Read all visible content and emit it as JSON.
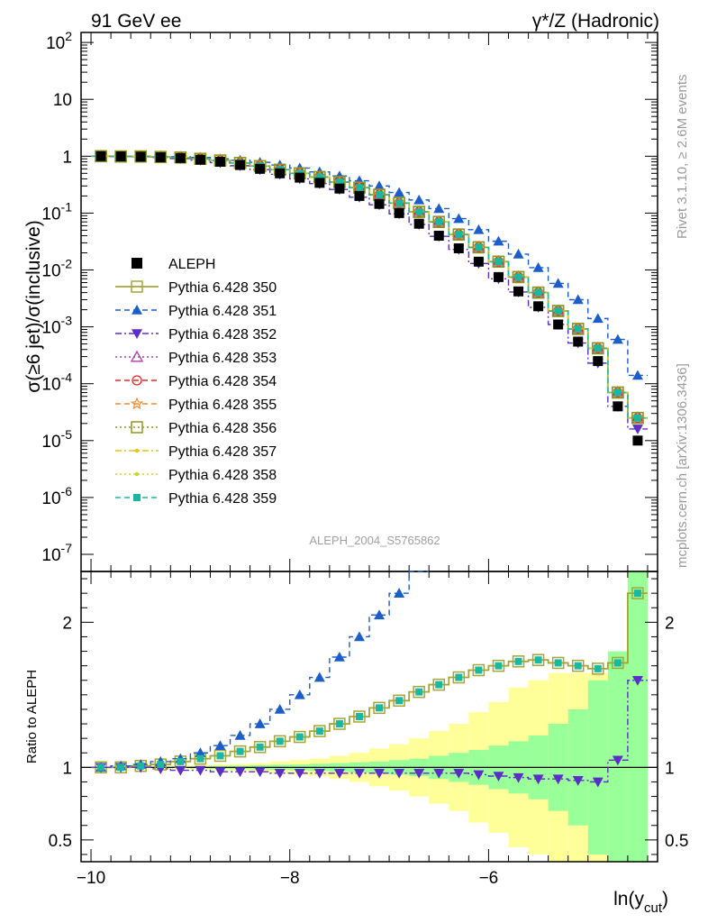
{
  "header": {
    "left_title": "91 GeV ee",
    "right_title": "γ*/Z (Hadronic)",
    "side_text_top": "Rivet 3.1.10, ≥ 2.6M events",
    "side_text_bottom": "mcplots.cern.ch [arXiv:1306.3436]",
    "analysis_id": "ALEPH_2004_S5765862"
  },
  "chart_data": [
    {
      "type": "scatter",
      "panel": "main",
      "ylabel": "σ(≥6 jet)/σ(inclusive)",
      "xlabel": "ln(y_cut)",
      "xlim": [
        -10.1,
        -4.3
      ],
      "ylim": [
        5e-08,
        150
      ],
      "yscale": "log",
      "x_ticks": [
        -10,
        -8,
        -6
      ],
      "y_tick_labels": [
        "10^2",
        "10",
        "1",
        "10^-1",
        "10^-2",
        "10^-3",
        "10^-4",
        "10^-5",
        "10^-6",
        "10^-7"
      ],
      "legend_position": "left",
      "x": [
        -9.9,
        -9.7,
        -9.5,
        -9.3,
        -9.1,
        -8.9,
        -8.7,
        -8.5,
        -8.3,
        -8.1,
        -7.9,
        -7.7,
        -7.5,
        -7.3,
        -7.1,
        -6.9,
        -6.7,
        -6.5,
        -6.3,
        -6.1,
        -5.9,
        -5.7,
        -5.5,
        -5.3,
        -5.1,
        -4.9,
        -4.7,
        -4.5
      ],
      "series": [
        {
          "name": "ALEPH",
          "color": "#000000",
          "marker": "square-filled",
          "line": "none",
          "values": [
            1.0,
            0.99,
            0.98,
            0.96,
            0.93,
            0.87,
            0.8,
            0.7,
            0.6,
            0.5,
            0.42,
            0.34,
            0.27,
            0.2,
            0.145,
            0.1,
            0.065,
            0.04,
            0.024,
            0.014,
            0.0075,
            0.0042,
            0.0023,
            0.0011,
            0.00055,
            0.00025,
            4e-05,
            1e-05
          ]
        },
        {
          "name": "Pythia 6.428 350",
          "color": "#a5a536",
          "marker": "square-open",
          "line": "solid",
          "values": [
            1.0,
            0.99,
            0.99,
            0.97,
            0.95,
            0.9,
            0.84,
            0.76,
            0.67,
            0.58,
            0.5,
            0.43,
            0.35,
            0.28,
            0.21,
            0.15,
            0.105,
            0.07,
            0.042,
            0.025,
            0.014,
            0.0075,
            0.004,
            0.0019,
            0.00092,
            0.00042,
            7e-05,
            2.5e-05
          ]
        },
        {
          "name": "Pythia 6.428 351",
          "color": "#1c5ec9",
          "marker": "triangle-up-filled",
          "line": "dashed",
          "values": [
            1.0,
            1.0,
            1.0,
            0.99,
            0.98,
            0.95,
            0.9,
            0.85,
            0.78,
            0.7,
            0.62,
            0.53,
            0.45,
            0.37,
            0.3,
            0.23,
            0.17,
            0.12,
            0.08,
            0.051,
            0.032,
            0.019,
            0.011,
            0.0058,
            0.003,
            0.0014,
            0.0006,
            0.00014
          ]
        },
        {
          "name": "Pythia 6.428 352",
          "color": "#5b2ec8",
          "marker": "triangle-down-filled",
          "line": "dashdot",
          "values": [
            1.0,
            0.99,
            0.98,
            0.95,
            0.91,
            0.85,
            0.77,
            0.68,
            0.58,
            0.48,
            0.4,
            0.33,
            0.26,
            0.19,
            0.14,
            0.097,
            0.063,
            0.039,
            0.023,
            0.013,
            0.007,
            0.0041,
            0.0022,
            0.0011,
            0.00052,
            0.00023,
            4e-05,
            1.6e-05
          ]
        },
        {
          "name": "Pythia 6.428 353",
          "color": "#b03aa8",
          "marker": "triangle-up-open",
          "line": "dotted",
          "values": [
            1.0,
            0.99,
            0.99,
            0.97,
            0.95,
            0.9,
            0.84,
            0.76,
            0.67,
            0.58,
            0.5,
            0.43,
            0.35,
            0.28,
            0.21,
            0.15,
            0.105,
            0.07,
            0.042,
            0.025,
            0.014,
            0.0075,
            0.004,
            0.0019,
            0.00092,
            0.00042,
            7e-05,
            2.5e-05
          ]
        },
        {
          "name": "Pythia 6.428 354",
          "color": "#e3262a",
          "marker": "circle-open",
          "line": "dashed",
          "values": [
            1.0,
            0.99,
            0.99,
            0.97,
            0.95,
            0.9,
            0.84,
            0.76,
            0.67,
            0.58,
            0.5,
            0.43,
            0.35,
            0.28,
            0.21,
            0.15,
            0.105,
            0.07,
            0.042,
            0.025,
            0.014,
            0.0075,
            0.004,
            0.0019,
            0.00092,
            0.00042,
            7e-05,
            2.5e-05
          ]
        },
        {
          "name": "Pythia 6.428 355",
          "color": "#f28a30",
          "marker": "star-open",
          "line": "dashed",
          "values": [
            1.0,
            0.99,
            0.99,
            0.97,
            0.95,
            0.9,
            0.84,
            0.76,
            0.67,
            0.58,
            0.5,
            0.43,
            0.35,
            0.28,
            0.21,
            0.15,
            0.105,
            0.07,
            0.042,
            0.025,
            0.014,
            0.0075,
            0.004,
            0.0019,
            0.00092,
            0.00042,
            7e-05,
            2.5e-05
          ]
        },
        {
          "name": "Pythia 6.428 356",
          "color": "#8a9a1a",
          "marker": "square-open",
          "line": "dotted",
          "values": [
            1.0,
            0.99,
            0.99,
            0.97,
            0.95,
            0.9,
            0.84,
            0.76,
            0.67,
            0.58,
            0.5,
            0.43,
            0.35,
            0.28,
            0.21,
            0.15,
            0.105,
            0.07,
            0.042,
            0.025,
            0.014,
            0.0075,
            0.004,
            0.0019,
            0.00092,
            0.00042,
            7e-05,
            2.5e-05
          ]
        },
        {
          "name": "Pythia 6.428 357",
          "color": "#e3c21c",
          "marker": "dot",
          "line": "dashdot",
          "values": [
            1.0,
            0.99,
            0.99,
            0.97,
            0.95,
            0.9,
            0.84,
            0.76,
            0.67,
            0.58,
            0.5,
            0.43,
            0.35,
            0.28,
            0.21,
            0.15,
            0.105,
            0.07,
            0.042,
            0.025,
            0.014,
            0.0075,
            0.004,
            0.0019,
            0.00092,
            0.00042,
            7e-05,
            2.5e-05
          ]
        },
        {
          "name": "Pythia 6.428 358",
          "color": "#c8d62a",
          "marker": "dot",
          "line": "dotted",
          "values": [
            1.0,
            0.99,
            0.99,
            0.97,
            0.95,
            0.9,
            0.84,
            0.76,
            0.67,
            0.58,
            0.5,
            0.43,
            0.35,
            0.28,
            0.21,
            0.15,
            0.105,
            0.07,
            0.042,
            0.025,
            0.014,
            0.0075,
            0.004,
            0.0019,
            0.00092,
            0.00042,
            7e-05,
            2.5e-05
          ]
        },
        {
          "name": "Pythia 6.428 359",
          "color": "#1ab8a0",
          "marker": "square-filled-small",
          "line": "dashed",
          "values": [
            1.0,
            0.99,
            0.99,
            0.97,
            0.95,
            0.9,
            0.84,
            0.76,
            0.67,
            0.58,
            0.5,
            0.43,
            0.35,
            0.28,
            0.21,
            0.15,
            0.105,
            0.07,
            0.042,
            0.025,
            0.014,
            0.0075,
            0.004,
            0.0019,
            0.00092,
            0.00042,
            7e-05,
            2.5e-05
          ]
        }
      ]
    },
    {
      "type": "scatter",
      "panel": "ratio",
      "ylabel": "Ratio to ALEPH",
      "xlabel": "ln(y_cut)",
      "xlim": [
        -10.1,
        -4.3
      ],
      "ylim": [
        0.35,
        2.35
      ],
      "y_ticks": [
        0.5,
        1,
        2
      ],
      "bands": {
        "x_edges": [
          -10.0,
          -9.8,
          -9.6,
          -9.4,
          -9.2,
          -9.0,
          -8.8,
          -8.6,
          -8.4,
          -8.2,
          -8.0,
          -7.8,
          -7.6,
          -7.4,
          -7.2,
          -7.0,
          -6.8,
          -6.6,
          -6.4,
          -6.2,
          -6.0,
          -5.8,
          -5.6,
          -5.4,
          -5.2,
          -5.0,
          -4.8,
          -4.6,
          -4.4
        ],
        "green_halfwidth": [
          0.002,
          0.003,
          0.004,
          0.005,
          0.006,
          0.008,
          0.01,
          0.012,
          0.015,
          0.018,
          0.02,
          0.025,
          0.03,
          0.035,
          0.04,
          0.05,
          0.06,
          0.08,
          0.1,
          0.12,
          0.15,
          0.18,
          0.22,
          0.3,
          0.4,
          0.6,
          0.8,
          1.5
        ],
        "yellow_halfwidth": [
          0.005,
          0.006,
          0.008,
          0.01,
          0.012,
          0.015,
          0.02,
          0.025,
          0.03,
          0.04,
          0.05,
          0.06,
          0.08,
          0.1,
          0.13,
          0.16,
          0.2,
          0.25,
          0.3,
          0.38,
          0.45,
          0.55,
          0.6,
          0.65,
          0.65,
          0.65,
          0.65,
          1.5
        ]
      },
      "series": [
        {
          "name": "Pythia 6.428 350",
          "values": [
            1.0,
            1.0,
            1.01,
            1.02,
            1.04,
            1.06,
            1.08,
            1.11,
            1.14,
            1.18,
            1.21,
            1.25,
            1.3,
            1.35,
            1.41,
            1.46,
            1.52,
            1.57,
            1.62,
            1.67,
            1.7,
            1.73,
            1.74,
            1.72,
            1.7,
            1.68,
            1.72,
            2.2
          ]
        },
        {
          "name": "Pythia 6.428 351",
          "values": [
            1.0,
            1.01,
            1.02,
            1.04,
            1.06,
            1.1,
            1.15,
            1.22,
            1.3,
            1.4,
            1.5,
            1.62,
            1.76,
            1.9,
            2.05,
            2.2,
            2.35
          ]
        },
        {
          "name": "Pythia 6.428 352",
          "values": [
            1.0,
            1.0,
            1.0,
            0.99,
            0.98,
            0.98,
            0.97,
            0.97,
            0.97,
            0.96,
            0.96,
            0.96,
            0.96,
            0.96,
            0.96,
            0.96,
            0.96,
            0.96,
            0.96,
            0.95,
            0.94,
            0.93,
            0.92,
            0.92,
            0.91,
            0.9,
            1.05,
            1.6
          ]
        }
      ]
    }
  ]
}
